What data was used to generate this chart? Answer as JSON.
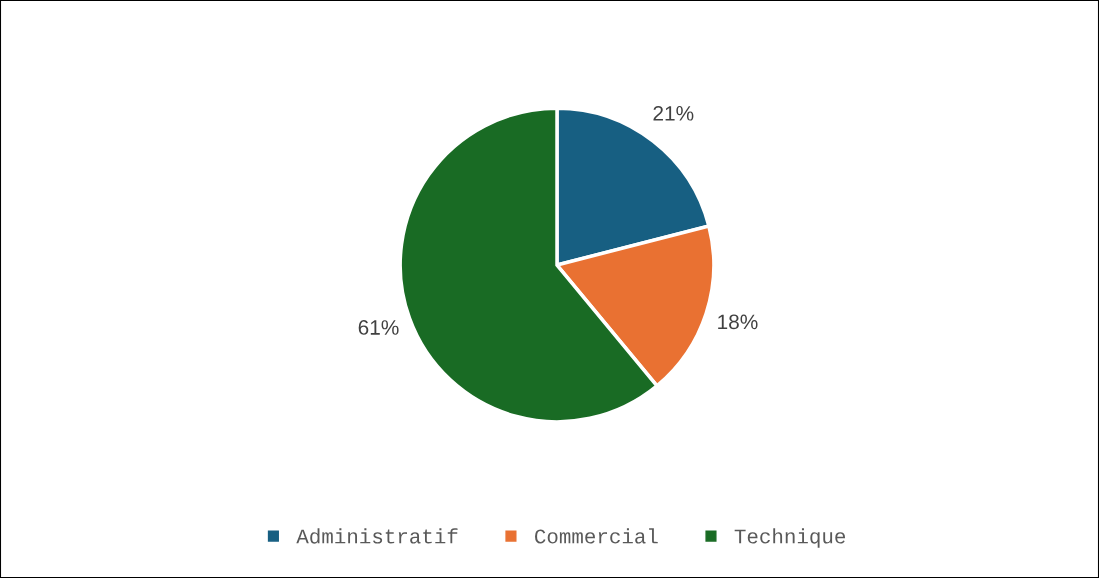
{
  "chart_data": {
    "type": "pie",
    "categories": [
      "Administratif",
      "Commercial",
      "Technique"
    ],
    "values": [
      21,
      18,
      61
    ],
    "colors": [
      "#175f82",
      "#e97132",
      "#196b24"
    ],
    "value_labels": [
      "21%",
      "18%",
      "61%"
    ],
    "legend": "bottom"
  }
}
